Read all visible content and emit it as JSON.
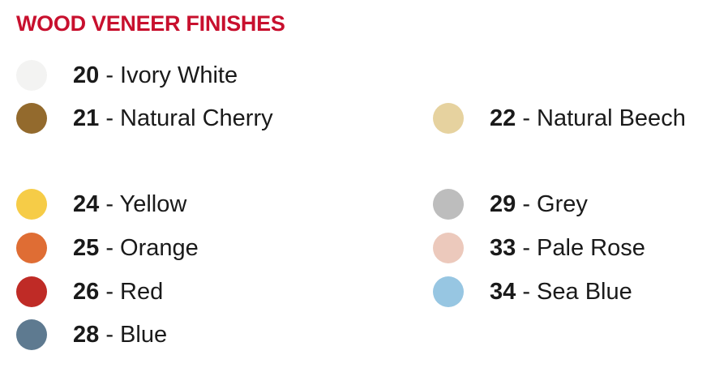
{
  "title": "WOOD VENEER FINISHES",
  "separator": " - ",
  "finishes": [
    {
      "code": "20",
      "name": "Ivory White",
      "color": "#f3f3f2"
    },
    {
      "code": "21",
      "name": "Natural Cherry",
      "color": "#936a2d"
    },
    {
      "code": "22",
      "name": "Natural Beech",
      "color": "#e6d29f"
    },
    {
      "code": "24",
      "name": "Yellow",
      "color": "#f6cc47"
    },
    {
      "code": "29",
      "name": "Grey",
      "color": "#bdbdbd"
    },
    {
      "code": "25",
      "name": "Orange",
      "color": "#df6d34"
    },
    {
      "code": "33",
      "name": "Pale Rose",
      "color": "#ecc9bc"
    },
    {
      "code": "26",
      "name": "Red",
      "color": "#bf2b26"
    },
    {
      "code": "34",
      "name": "Sea Blue",
      "color": "#97c6e2"
    },
    {
      "code": "28",
      "name": "Blue",
      "color": "#5e7a90"
    }
  ]
}
